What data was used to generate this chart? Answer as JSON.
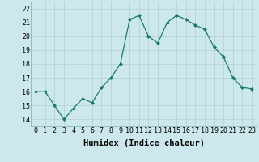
{
  "x": [
    0,
    1,
    2,
    3,
    4,
    5,
    6,
    7,
    8,
    9,
    10,
    11,
    12,
    13,
    14,
    15,
    16,
    17,
    18,
    19,
    20,
    21,
    22,
    23
  ],
  "y": [
    16.0,
    16.0,
    15.0,
    14.0,
    14.8,
    15.5,
    15.2,
    16.3,
    17.0,
    18.0,
    21.2,
    21.5,
    20.0,
    19.5,
    21.0,
    21.5,
    21.2,
    20.8,
    20.5,
    19.2,
    18.5,
    17.0,
    16.3,
    16.2
  ],
  "line_color": "#1a7a6e",
  "marker": "D",
  "marker_size": 2.0,
  "bg_color": "#cde8ec",
  "grid_color": "#b0cfd4",
  "xlabel": "Humidex (Indice chaleur)",
  "xlim": [
    -0.5,
    23.5
  ],
  "ylim": [
    13.5,
    22.5
  ],
  "yticks": [
    14,
    15,
    16,
    17,
    18,
    19,
    20,
    21,
    22
  ],
  "xticks": [
    0,
    1,
    2,
    3,
    4,
    5,
    6,
    7,
    8,
    9,
    10,
    11,
    12,
    13,
    14,
    15,
    16,
    17,
    18,
    19,
    20,
    21,
    22,
    23
  ],
  "tick_fontsize": 6,
  "xlabel_fontsize": 7.5
}
